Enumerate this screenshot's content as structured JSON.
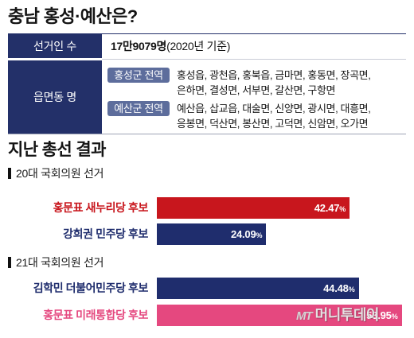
{
  "title": "충남 홍성·예산은?",
  "info_table": {
    "voters": {
      "label": "선거인 수",
      "value": "17만9079명",
      "basis": "(2020년 기준)"
    },
    "districts": {
      "label": "읍면동 명",
      "groups": [
        {
          "tag": "홍성군 전역",
          "lines": [
            "홍성읍, 광천읍, 홍북읍, 금마면, 홍동면, 장곡면,",
            "은하면, 결성면, 서부면, 갈산면, 구항면"
          ]
        },
        {
          "tag": "예산군 전역",
          "lines": [
            "예산읍, 삽교읍, 대술면, 신양면, 광시면, 대흥면,",
            "응봉면, 덕산면, 봉산면, 고덕면, 신암면, 오가면"
          ]
        }
      ]
    }
  },
  "results_title": "지난 총선 결과",
  "colors": {
    "table_header": "#233069",
    "tag": "#5d6d9c"
  },
  "chart_data": [
    {
      "type": "bar",
      "orientation": "horizontal",
      "title": "20대 국회의원 선거",
      "categories": [
        "홍문표 새누리당 후보",
        "강희권 민주당 후보"
      ],
      "values": [
        42.47,
        24.09
      ],
      "unit": "%",
      "colors": [
        "#c8161d",
        "#1f2d6d"
      ],
      "grid": false
    },
    {
      "type": "bar",
      "orientation": "horizontal",
      "title": "21대 국회의원 선거",
      "categories": [
        "김학민 더불어민주당 후보",
        "홍문표 미래통합당 후보"
      ],
      "values": [
        44.48,
        53.95
      ],
      "unit": "%",
      "colors": [
        "#1f2d6d",
        "#e5487f"
      ],
      "grid": false
    }
  ],
  "watermark": {
    "mark": "MT",
    "name": "머니투데이"
  }
}
